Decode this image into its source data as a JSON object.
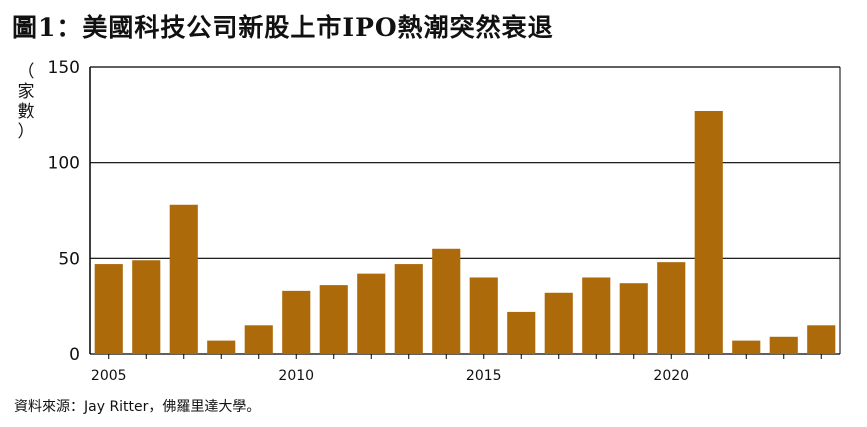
{
  "title": "圖1：美國科技公司新股上市IPO熱潮突然衰退",
  "ylabel_chars": [
    "（",
    "家",
    "數",
    "）"
  ],
  "source": "資料來源：Jay Ritter，佛羅里達大學。",
  "colors": {
    "bar": "#ad6a0a",
    "axis": "#000000",
    "grid": "#000000"
  },
  "chart_data": {
    "type": "bar",
    "title": "圖1：美國科技公司新股上市IPO熱潮突然衰退",
    "ylabel": "（家數）",
    "xlabel": "",
    "categories": [
      2005,
      2006,
      2007,
      2008,
      2009,
      2010,
      2011,
      2012,
      2013,
      2014,
      2015,
      2016,
      2017,
      2018,
      2019,
      2020,
      2021,
      2022,
      2023,
      2024
    ],
    "values": [
      47,
      49,
      78,
      7,
      15,
      33,
      36,
      42,
      47,
      55,
      40,
      22,
      32,
      40,
      37,
      48,
      127,
      7,
      9,
      15
    ],
    "ylim": [
      0,
      150
    ],
    "yticks": [
      0,
      50,
      100,
      150
    ],
    "xticks": [
      2005,
      2010,
      2015,
      2020
    ],
    "grid": "horizontal"
  }
}
